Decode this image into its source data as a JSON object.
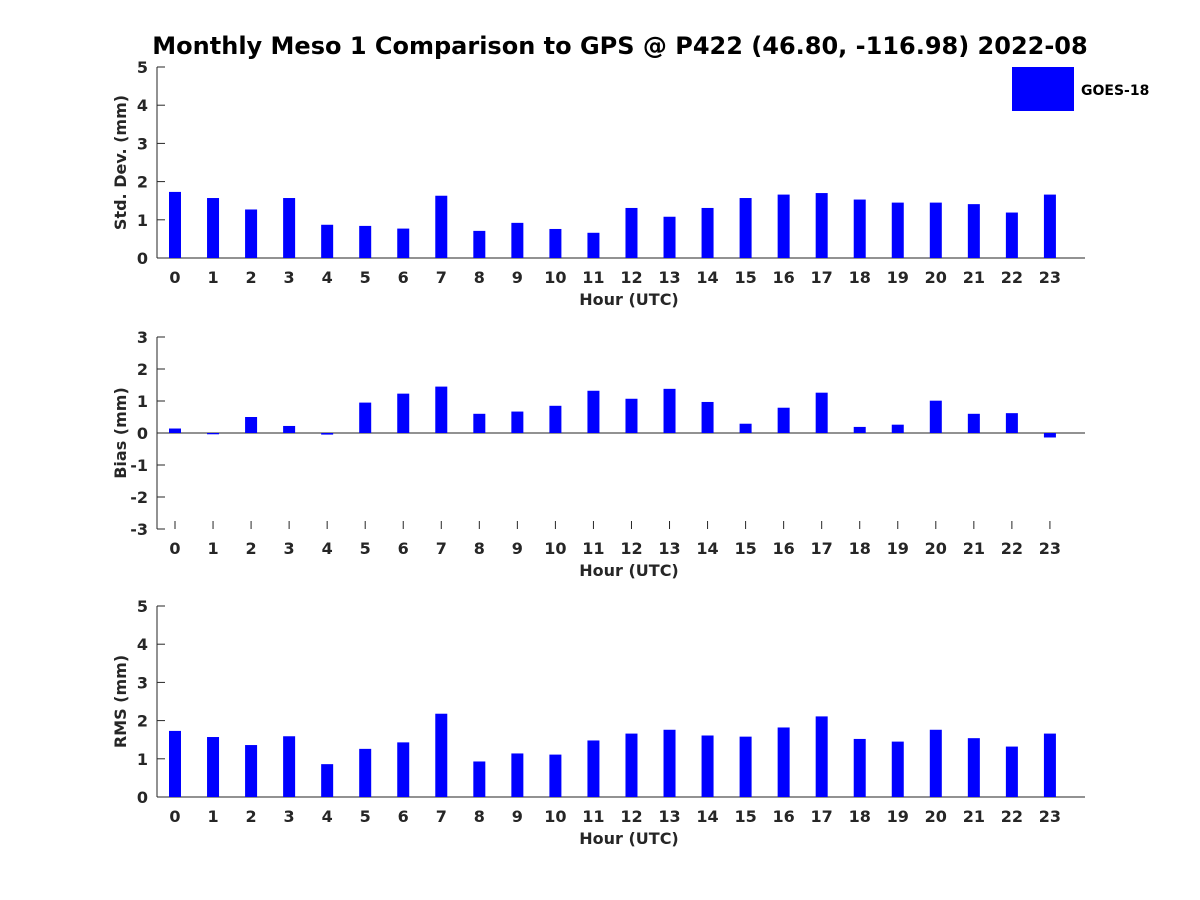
{
  "chart_data": {
    "title": "Monthly Meso 1 Comparison to GPS @ P422 (46.80, -116.98) 2022-08",
    "type": "bar",
    "bar_color": "#0000ff",
    "legend": {
      "label": "GOES-18",
      "placement": "top-right"
    },
    "x": [
      0,
      1,
      2,
      3,
      4,
      5,
      6,
      7,
      8,
      9,
      10,
      11,
      12,
      13,
      14,
      15,
      16,
      17,
      18,
      19,
      20,
      21,
      22,
      23
    ],
    "panels": [
      {
        "ylabel": "Std. Dev. (mm)",
        "xlabel": "Hour (UTC)",
        "ylim": [
          0,
          5
        ],
        "yticks": [
          0,
          1,
          2,
          3,
          4,
          5
        ],
        "values": [
          1.73,
          1.57,
          1.27,
          1.57,
          0.87,
          0.84,
          0.77,
          1.63,
          0.71,
          0.92,
          0.76,
          0.66,
          1.31,
          1.08,
          1.31,
          1.57,
          1.66,
          1.7,
          1.53,
          1.45,
          1.45,
          1.41,
          1.19,
          1.66
        ]
      },
      {
        "ylabel": "Bias (mm)",
        "xlabel": "Hour (UTC)",
        "ylim": [
          -3,
          3
        ],
        "yticks": [
          -3,
          -2,
          -1,
          0,
          1,
          2,
          3
        ],
        "values": [
          0.14,
          -0.04,
          0.5,
          0.22,
          -0.05,
          0.95,
          1.23,
          1.45,
          0.6,
          0.67,
          0.85,
          1.32,
          1.07,
          1.38,
          0.97,
          0.29,
          0.79,
          1.26,
          0.19,
          0.26,
          1.01,
          0.6,
          0.62,
          -0.14
        ]
      },
      {
        "ylabel": "RMS (mm)",
        "xlabel": "Hour (UTC)",
        "ylim": [
          0,
          5
        ],
        "yticks": [
          0,
          1,
          2,
          3,
          4,
          5
        ],
        "values": [
          1.73,
          1.57,
          1.36,
          1.59,
          0.86,
          1.26,
          1.43,
          2.18,
          0.93,
          1.14,
          1.11,
          1.48,
          1.66,
          1.76,
          1.61,
          1.58,
          1.82,
          2.11,
          1.52,
          1.45,
          1.76,
          1.54,
          1.32,
          1.66
        ]
      }
    ]
  }
}
